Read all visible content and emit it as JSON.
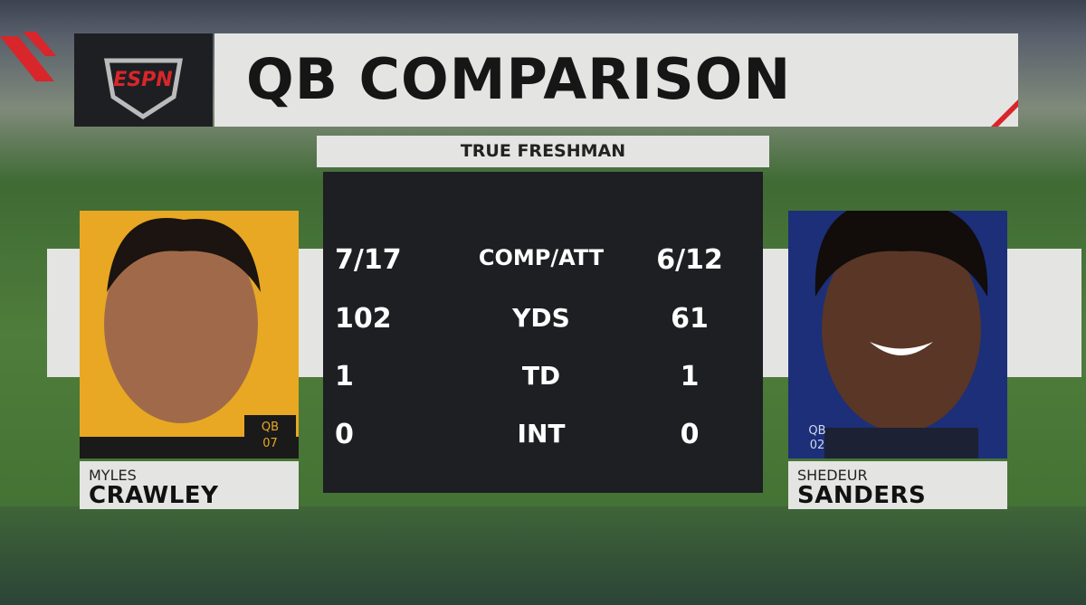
{
  "logo": "ESPN",
  "header": {
    "title": "QB COMPARISON",
    "subtitle": "TRUE FRESHMAN"
  },
  "players": [
    {
      "first": "MYLES",
      "last": "CRAWLEY",
      "badge": [
        "QB",
        "07"
      ]
    },
    {
      "first": "SHEDEUR",
      "last": "SANDERS",
      "badge": [
        "QB",
        "02"
      ]
    }
  ],
  "stats": [
    [
      "7/17",
      "COMP/ATT",
      "6/12"
    ],
    [
      "102",
      "YDS",
      "61"
    ],
    [
      "1",
      "TD",
      "1"
    ],
    [
      "0",
      "INT",
      "0"
    ]
  ]
}
